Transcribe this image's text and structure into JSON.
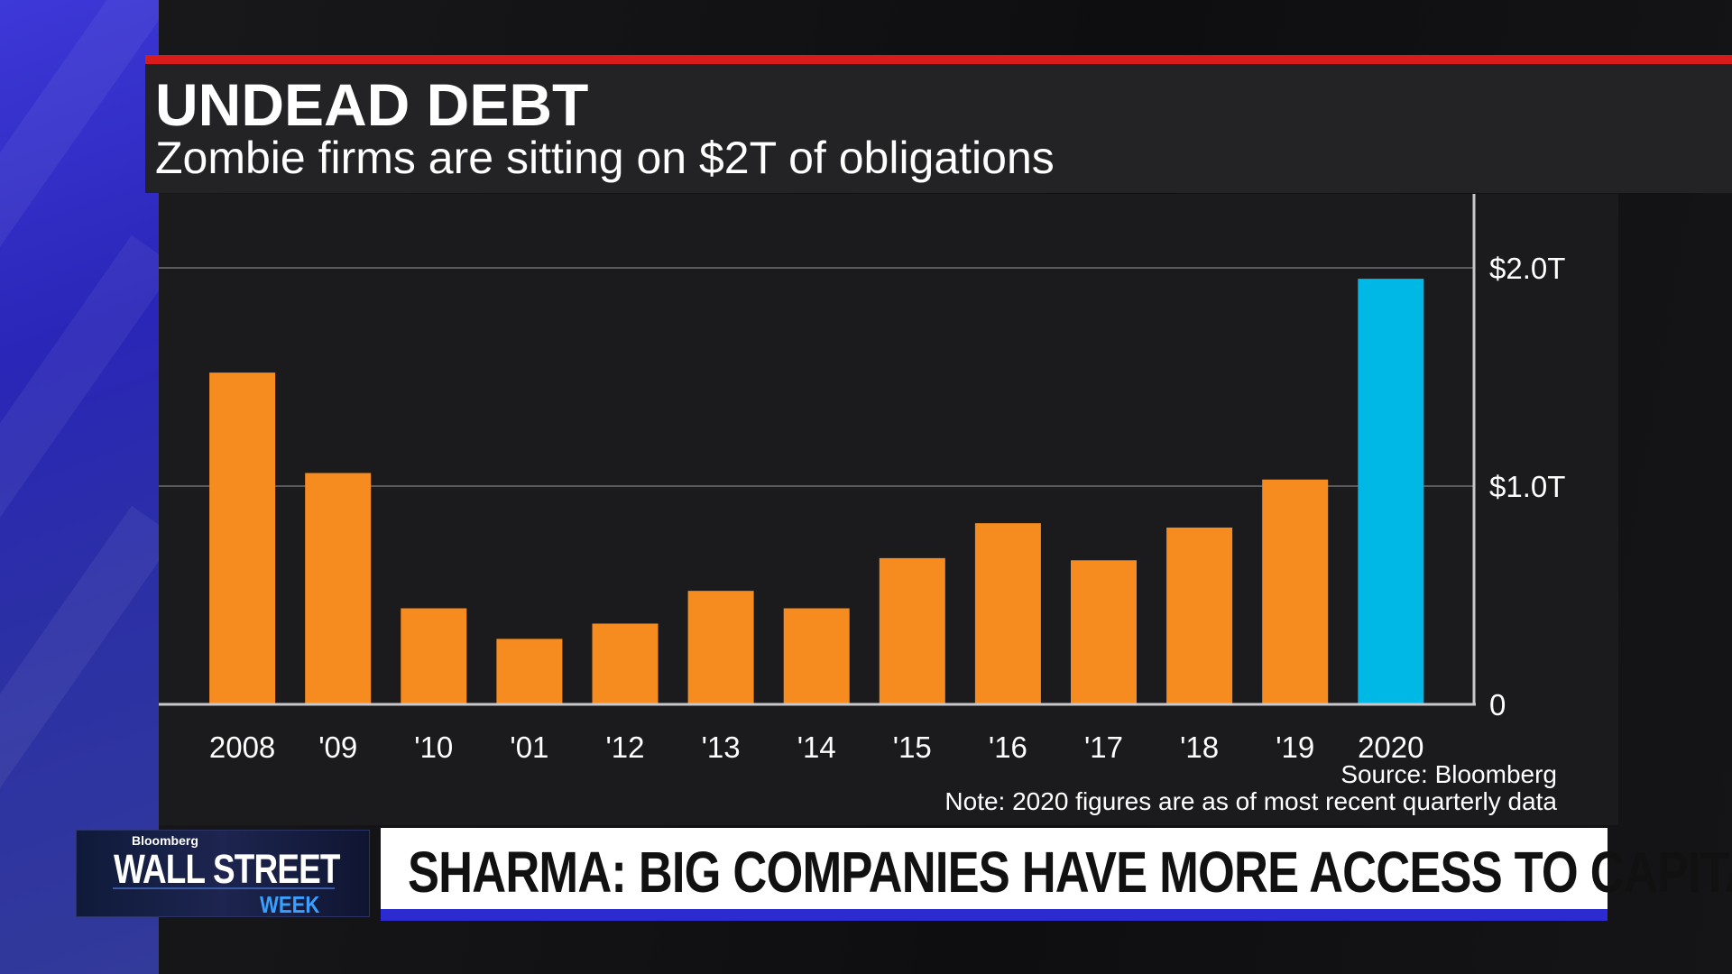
{
  "header": {
    "title": "UNDEAD DEBT",
    "subtitle": "Zombie firms are sitting on $2T of obligations"
  },
  "footer": {
    "source": "Source: Bloomberg",
    "note": "Note: 2020 figures are as of most recent quarterly data"
  },
  "show": {
    "brand": "Bloomberg",
    "name_line1": "WALL STREET",
    "name_line2": "WEEK"
  },
  "lower_third": {
    "headline": "SHARMA: BIG COMPANIES HAVE MORE ACCESS TO CAPITAL"
  },
  "colors": {
    "bar": "#f68b1f",
    "highlight_bar": "#00b8e6",
    "accent_red": "#d81b1b",
    "lower_third_blue": "#2b2bd0"
  },
  "chart_data": {
    "type": "bar",
    "title": "UNDEAD DEBT",
    "subtitle": "Zombie firms are sitting on $2T of obligations",
    "categories": [
      "2008",
      "'09",
      "'10",
      "'01",
      "'12",
      "'13",
      "'14",
      "'15",
      "'16",
      "'17",
      "'18",
      "'19",
      "2020"
    ],
    "values": [
      1.52,
      1.06,
      0.44,
      0.3,
      0.37,
      0.52,
      0.44,
      0.67,
      0.83,
      0.66,
      0.81,
      1.03,
      1.95
    ],
    "highlight_index": 12,
    "unit": "trillions USD",
    "ylim": [
      0,
      2.0
    ],
    "y_ticks": [
      {
        "value": 0,
        "label": "0"
      },
      {
        "value": 1.0,
        "label": "$1.0T"
      },
      {
        "value": 2.0,
        "label": "$2.0T"
      }
    ],
    "y_axis_side": "right",
    "grid": true,
    "xlabel": "",
    "ylabel": ""
  }
}
